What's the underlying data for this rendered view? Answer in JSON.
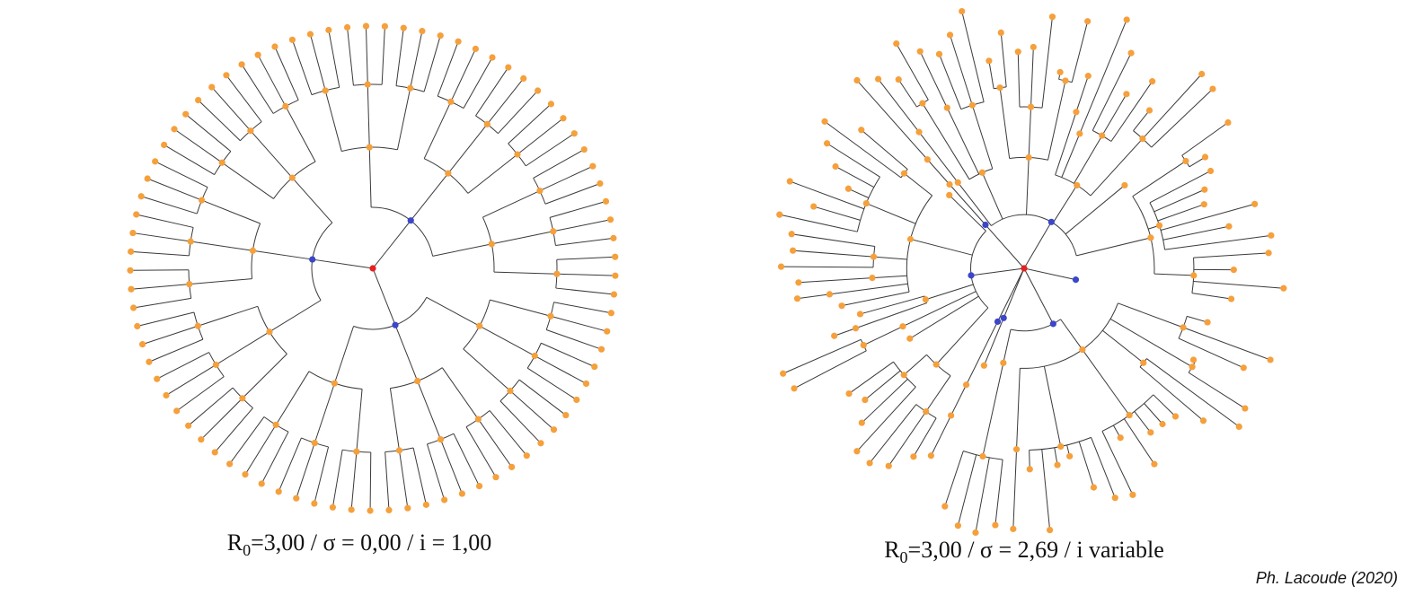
{
  "colors": {
    "edge": "#3a3a3a",
    "leaf": "#f5a03c",
    "intermediate": "#3b46c8",
    "root": "#e52020"
  },
  "diagrams": [
    {
      "caption": {
        "r_symbol": "R",
        "r_subscript": "0",
        "text": "=3,00 / σ = 0,00 / i = 1,00"
      },
      "branching": [
        3,
        3,
        3,
        3
      ]
    },
    {
      "caption": {
        "r_symbol": "R",
        "r_subscript": "0",
        "text": "=3,00 / σ = 2,69 / i variable"
      },
      "branching": "variable"
    }
  ],
  "credit": "Ph. Lacoude (2020)"
}
